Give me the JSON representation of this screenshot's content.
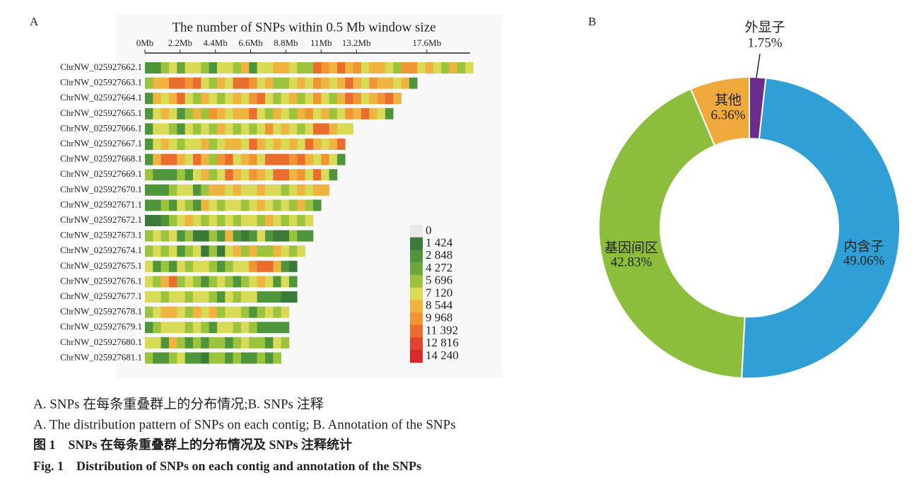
{
  "chart_data": [
    {
      "type": "heatmap",
      "panel": "A",
      "title": "The number of SNPs within 0.5 Mb window size",
      "xlim": [
        0,
        20.3
      ],
      "xticks": [
        {
          "value": 0,
          "label": "0Mb"
        },
        {
          "value": 2.2,
          "label": "2.2Mb"
        },
        {
          "value": 4.4,
          "label": "4.4Mb"
        },
        {
          "value": 6.6,
          "label": "6.6Mb"
        },
        {
          "value": 8.8,
          "label": "8.8Mb"
        },
        {
          "value": 11,
          "label": "11Mb"
        },
        {
          "value": 13.2,
          "label": "13.2Mb"
        },
        {
          "value": 17.6,
          "label": "17.6Mb"
        }
      ],
      "window": 0.5,
      "categories": [
        "ChrNW_025927662.1",
        "ChrNW_025927663.1",
        "ChrNW_025927664.1",
        "ChrNW_025927665.1",
        "ChrNW_025927666.1",
        "ChrNW_025927667.1",
        "ChrNW_025927668.1",
        "ChrNW_025927669.1",
        "ChrNW_025927670.1",
        "ChrNW_025927671.1",
        "ChrNW_025927672.1",
        "ChrNW_025927673.1",
        "ChrNW_025927674.1",
        "ChrNW_025927675.1",
        "ChrNW_025927676.1",
        "ChrNW_025927677.1",
        "ChrNW_025927678.1",
        "ChrNW_025927679.1",
        "ChrNW_025927680.1",
        "ChrNW_025927681.1"
      ],
      "values": [
        [
          3000,
          3000,
          5000,
          7000,
          4000,
          7000,
          7000,
          5000,
          3000,
          7000,
          7000,
          6000,
          9000,
          3000,
          7000,
          7000,
          8000,
          9000,
          7000,
          6000,
          5000,
          12000,
          10000,
          9000,
          11000,
          9000,
          10000,
          7000,
          9000,
          9000,
          7000,
          5000,
          10000,
          10000,
          7000,
          9000,
          7000,
          5000,
          8000,
          5000,
          7000
        ],
        [
          6000,
          9000,
          8000,
          12000,
          12000,
          10000,
          11000,
          7000,
          5000,
          9000,
          7000,
          12000,
          11000,
          10000,
          7000,
          9000,
          5000,
          5000,
          7000,
          9000,
          7000,
          10000,
          9000,
          7000,
          9000,
          11000,
          9000,
          7000,
          10000,
          9000,
          9000,
          7000,
          9000,
          3000
        ],
        [
          3000,
          9000,
          7000,
          9000,
          11000,
          7000,
          5000,
          9000,
          7000,
          5000,
          7000,
          9000,
          7000,
          10000,
          11000,
          7000,
          5000,
          7000,
          9000,
          5000,
          7000,
          10000,
          7000,
          5000,
          9000,
          11000,
          10000,
          7000,
          9000,
          10000,
          11000,
          9000
        ],
        [
          3000,
          7000,
          9000,
          7000,
          3000,
          5000,
          9000,
          5000,
          10000,
          9000,
          7000,
          9000,
          9000,
          11000,
          7000,
          6000,
          9000,
          7000,
          5000,
          9000,
          10000,
          7000,
          9000,
          6000,
          7000,
          10000,
          9000,
          11000,
          9000,
          7000,
          3000
        ],
        [
          3000,
          7000,
          7000,
          5000,
          3000,
          7000,
          5000,
          7000,
          6000,
          9000,
          7000,
          5000,
          7000,
          5000,
          7000,
          10000,
          7000,
          9000,
          7000,
          5000,
          7000,
          11000,
          11000,
          9000,
          7000,
          7000
        ],
        [
          3000,
          7000,
          9000,
          7000,
          5000,
          7000,
          7000,
          9000,
          5000,
          7000,
          9000,
          9000,
          7000,
          11000,
          9000,
          7000,
          9000,
          7000,
          9000,
          7000,
          11000,
          9000,
          7000,
          9000,
          12000
        ],
        [
          3000,
          9000,
          11000,
          11000,
          9000,
          7000,
          12000,
          9000,
          5000,
          10000,
          11000,
          7000,
          9000,
          10000,
          7000,
          11000,
          12000,
          12000,
          10000,
          11000,
          9000,
          7000,
          10000,
          7000,
          3000
        ],
        [
          5000,
          3000,
          3000,
          3000,
          5000,
          3000,
          7000,
          9000,
          5000,
          7000,
          11000,
          9000,
          7000,
          10000,
          9000,
          7000,
          11000,
          11000,
          9000,
          10000,
          7000,
          11000,
          7000,
          3000
        ],
        [
          3000,
          3000,
          3000,
          5000,
          7000,
          7000,
          3000,
          5000,
          9000,
          9000,
          7000,
          9000,
          7000,
          7000,
          9000,
          7000,
          7000,
          5000,
          7000,
          9000,
          7000,
          9000,
          9000
        ],
        [
          3000,
          3000,
          5000,
          3000,
          7000,
          5000,
          3000,
          9000,
          7000,
          5000,
          7000,
          7000,
          5000,
          7000,
          9000,
          7000,
          5000,
          7000,
          5000,
          9000,
          5000,
          3000
        ],
        [
          2000,
          2000,
          3000,
          5000,
          7000,
          9000,
          7000,
          5000,
          7000,
          5000,
          7000,
          5000,
          7000,
          7000,
          5000,
          9000,
          7000,
          5000,
          7000,
          5000,
          7000
        ],
        [
          5000,
          7000,
          5000,
          7000,
          3000,
          5000,
          2000,
          2000,
          5000,
          3000,
          9000,
          3000,
          2000,
          3000,
          7000,
          3000,
          2000,
          2000,
          5000,
          3000,
          3000
        ],
        [
          5000,
          7000,
          5000,
          7000,
          3000,
          5000,
          7000,
          2000,
          5000,
          2000,
          7000,
          9000,
          5000,
          9000,
          5000,
          5000,
          9000,
          7000,
          5000,
          7000
        ],
        [
          7000,
          3000,
          5000,
          3000,
          7000,
          5000,
          7000,
          7000,
          5000,
          3000,
          5000,
          7000,
          7000,
          10000,
          12000,
          11000,
          9000,
          3000,
          2000
        ],
        [
          7000,
          5000,
          9000,
          12000,
          5000,
          7000,
          5000,
          3000,
          5000,
          7000,
          5000,
          3000,
          5000,
          7000,
          9000,
          7000,
          3000,
          7000,
          3000
        ],
        [
          7000,
          7000,
          5000,
          7000,
          7000,
          5000,
          7000,
          7000,
          5000,
          3000,
          7000,
          5000,
          7000,
          7000,
          3000,
          3000,
          3000,
          2000,
          2000
        ],
        [
          5000,
          7000,
          9000,
          9000,
          7000,
          5000,
          9000,
          7000,
          9000,
          5000,
          7000,
          7000,
          5000,
          3000,
          5000,
          7000,
          5000,
          7000
        ],
        [
          3000,
          5000,
          7000,
          7000,
          7000,
          5000,
          7000,
          5000,
          3000,
          7000,
          7000,
          5000,
          7000,
          5000,
          3000,
          3000,
          3000,
          3000
        ],
        [
          7000,
          7000,
          3000,
          9000,
          5000,
          3000,
          5000,
          3000,
          5000,
          5000,
          3000,
          5000,
          7000,
          5000,
          5000,
          3000,
          7000,
          5000
        ],
        [
          5000,
          3000,
          3000,
          5000,
          7000,
          3000,
          3000,
          2000,
          5000,
          5000,
          3000,
          5000,
          3000,
          3000,
          5000,
          3000,
          5000
        ]
      ],
      "colorscale": [
        {
          "value": 0,
          "label": "0",
          "color": "#e9e9e9"
        },
        {
          "value": 1424,
          "label": "1 424",
          "color": "#3c7a3a"
        },
        {
          "value": 2848,
          "label": "2 848",
          "color": "#4f953b"
        },
        {
          "value": 4272,
          "label": "4 272",
          "color": "#6ba83c"
        },
        {
          "value": 5696,
          "label": "5 696",
          "color": "#9cc33d"
        },
        {
          "value": 7120,
          "label": "7 120",
          "color": "#d9da55"
        },
        {
          "value": 8544,
          "label": "8 544",
          "color": "#eeb43f"
        },
        {
          "value": 9968,
          "label": "9 968",
          "color": "#ef9533"
        },
        {
          "value": 11392,
          "label": "11 392",
          "color": "#ea6c2f"
        },
        {
          "value": 12816,
          "label": "12 816",
          "color": "#e0452c"
        },
        {
          "value": 14240,
          "label": "14 240",
          "color": "#d82a2a"
        }
      ]
    },
    {
      "type": "pie",
      "panel": "B",
      "donut": true,
      "categories": [
        "外显子",
        "内含子",
        "基因间区",
        "其他"
      ],
      "values": [
        1.75,
        49.06,
        42.83,
        6.36
      ],
      "value_labels": [
        "1.75%",
        "49.06%",
        "42.83%",
        "6.36%"
      ],
      "colors": [
        "#6b2d8c",
        "#2f9fd6",
        "#8cbd3d",
        "#f0a93d"
      ]
    }
  ],
  "caption": {
    "cn_sub": "A. SNPs 在每条重叠群上的分布情况;B. SNPs 注释",
    "en_sub": "A. The distribution pattern of SNPs on each contig; B. Annotation of the SNPs",
    "cn_title": "图 1　SNPs 在每条重叠群上的分布情况及 SNPs 注释统计",
    "en_title": "Fig. 1　Distribution of SNPs on each contig and annotation of the SNPs"
  }
}
